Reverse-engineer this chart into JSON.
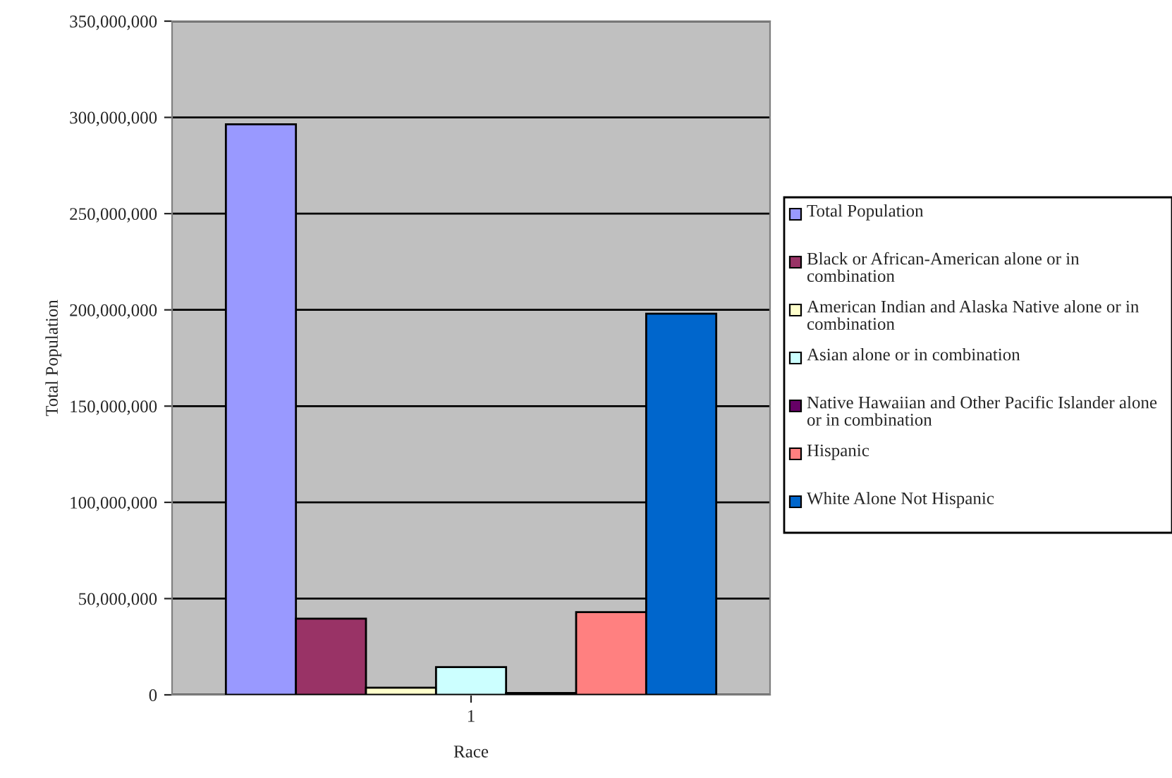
{
  "chart_data": {
    "type": "bar",
    "xlabel": "Race",
    "ylabel": "Total Population",
    "categories": [
      "1"
    ],
    "series": [
      {
        "name": "Total Population",
        "color": "#9999ff",
        "values": [
          296400000
        ]
      },
      {
        "name": "Black or African-American alone or in combination",
        "color": "#993366",
        "values": [
          39600000
        ]
      },
      {
        "name": "American Indian and Alaska Native alone or in combination",
        "color": "#ffffcc",
        "values": [
          3700000
        ]
      },
      {
        "name": "Asian alone or in combination",
        "color": "#ccffff",
        "values": [
          14400000
        ]
      },
      {
        "name": "Native Hawaiian and Other Pacific Islander alone or in combination",
        "color": "#660066",
        "values": [
          1000000
        ]
      },
      {
        "name": "Hispanic",
        "color": "#ff8080",
        "values": [
          43000000
        ]
      },
      {
        "name": "White Alone Not Hispanic",
        "color": "#0066cc",
        "values": [
          198000000
        ]
      }
    ],
    "ylim": [
      0,
      350000000
    ],
    "yticks": [
      {
        "value": 0,
        "label": "0"
      },
      {
        "value": 50000000,
        "label": "50,000,000"
      },
      {
        "value": 100000000,
        "label": "100,000,000"
      },
      {
        "value": 150000000,
        "label": "150,000,000"
      },
      {
        "value": 200000000,
        "label": "200,000,000"
      },
      {
        "value": 250000000,
        "label": "250,000,000"
      },
      {
        "value": 300000000,
        "label": "300,000,000"
      },
      {
        "value": 350000000,
        "label": "350,000,000"
      }
    ],
    "grid": "y",
    "legend": "right"
  }
}
